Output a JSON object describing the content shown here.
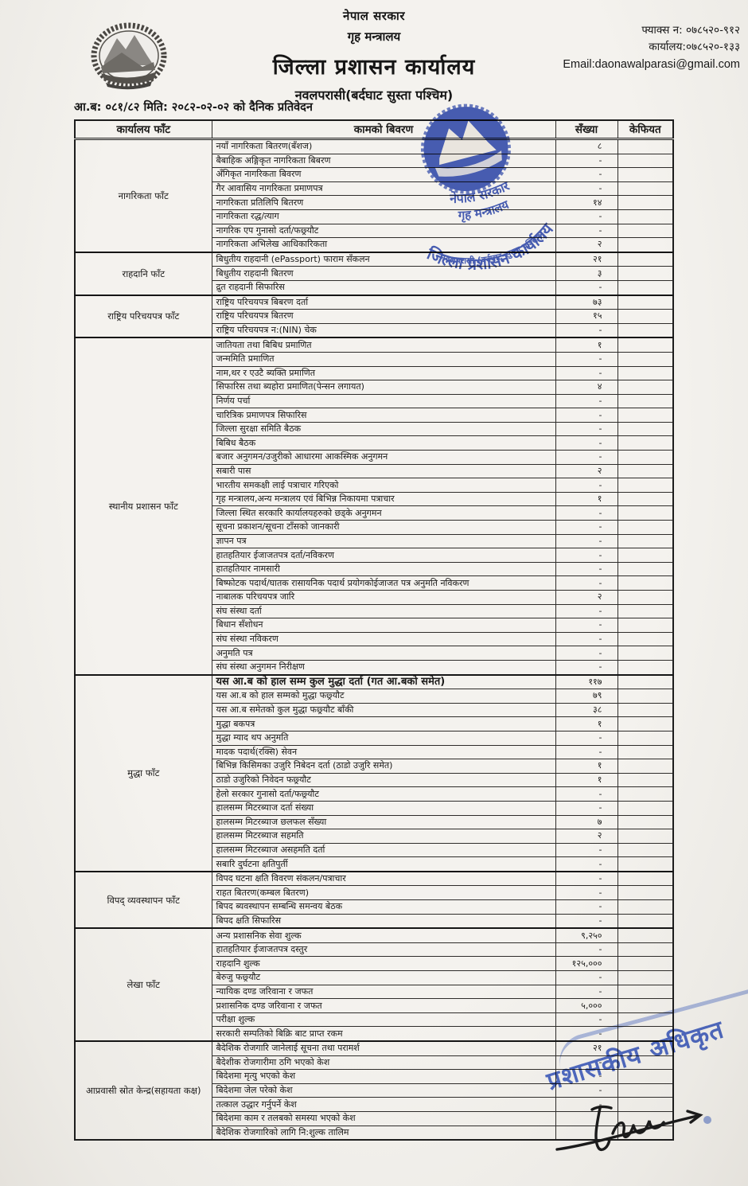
{
  "header": {
    "government": "नेपाल सरकार",
    "ministry": "गृह मन्त्रालय",
    "office": "जिल्ला प्रशासन कार्यालय",
    "district": "नवलपरासी(बर्दघाट सुस्ता पश्चिम)",
    "fax": "फ्याक्स न: ०७८५२०-९१२",
    "phone": "कार्यालय:०७८५२०-१३३",
    "email": "Email:daonawalparasi@gmail.com"
  },
  "report_line": "आ.ब: ०८१/८२ मिति: २०८२-०२-०२ को दैनिक प्रतिवेदन",
  "table": {
    "columns": [
      "कार्यालय फाँट",
      "कामको बिवरण",
      "सँख्या",
      "केफियत"
    ],
    "sections": [
      {
        "name": "नागरिकता फाँट",
        "rows": [
          {
            "label": "नयाँ नागरिकता बितरण(बँशज)",
            "count": "८",
            "remark": ""
          },
          {
            "label": "बैबाहिक अङ्गिकृत नागरिकता बिबरण",
            "count": "-",
            "remark": ""
          },
          {
            "label": "अँगिकृत नागरिकता बिवरण",
            "count": "-",
            "remark": ""
          },
          {
            "label": "गैर आवासिय नागरिकता प्रमाणपत्र",
            "count": "-",
            "remark": ""
          },
          {
            "label": "नागरिकता प्रतिलिपि बितरण",
            "count": "१४",
            "remark": ""
          },
          {
            "label": "नागरिकता रद्ध/त्याग",
            "count": "-",
            "remark": ""
          },
          {
            "label": "नागरिक एप गुनासो दर्ता/फछ्र्यौट",
            "count": "-",
            "remark": ""
          },
          {
            "label": "नागरिकता अभिलेख आधिकारिकता",
            "count": "२",
            "remark": ""
          }
        ]
      },
      {
        "name": "राहदानि फाँट",
        "rows": [
          {
            "label": "बिधुतीय राहदानी (ePassport) फाराम सँकलन",
            "count": "२१",
            "remark": ""
          },
          {
            "label": "बिधुतीय राहदानी बितरण",
            "count": "३",
            "remark": ""
          },
          {
            "label": "द्रुत राहदानी सिफारिस",
            "count": "-",
            "remark": ""
          }
        ]
      },
      {
        "name": "राष्ट्रिय परिचयपत्र फाँट",
        "rows": [
          {
            "label": "राष्ट्रिय परिचयपत्र बिबरण दर्ता",
            "count": "७३",
            "remark": ""
          },
          {
            "label": "राष्ट्रिय परिचयपत्र बितरण",
            "count": "१५",
            "remark": ""
          },
          {
            "label": "राष्ट्रिय परिचयपत्र न:(NIN) चेक",
            "count": "-",
            "remark": ""
          }
        ]
      },
      {
        "name": "स्थानीय प्रशासन फाँट",
        "rows": [
          {
            "label": "जातियता तथा बिबिध प्रमाणित",
            "count": "१",
            "remark": ""
          },
          {
            "label": "जन्ममिति प्रमाणित",
            "count": "-",
            "remark": ""
          },
          {
            "label": "नाम,थर र एउटै ब्यक्ति प्रमाणित",
            "count": "-",
            "remark": ""
          },
          {
            "label": "सिफारिस तथा ब्यहोरा प्रमाणित(पेन्सन लगायत)",
            "count": "४",
            "remark": ""
          },
          {
            "label": "निर्णय पर्चा",
            "count": "-",
            "remark": ""
          },
          {
            "label": "चारित्रिक प्रमाणपत्र सिफारिस",
            "count": "-",
            "remark": ""
          },
          {
            "label": "जिल्ला सुरक्षा समिति बैठक",
            "count": "-",
            "remark": ""
          },
          {
            "label": "बिबिध बैठक",
            "count": "-",
            "remark": ""
          },
          {
            "label": "बजार अनुगमन/उजुरीको आधारमा आकस्मिक अनुगमन",
            "count": "-",
            "remark": ""
          },
          {
            "label": "सबारी पास",
            "count": "२",
            "remark": ""
          },
          {
            "label": "भारतीय समकक्षी लाई पत्राचार गरिएको",
            "count": "-",
            "remark": ""
          },
          {
            "label": "गृह मन्त्रालय,अन्य मन्त्रालय एवं बिभिन्न निकायमा पत्राचार",
            "count": "१",
            "remark": ""
          },
          {
            "label": "जिल्ला स्थित सरकारि कार्यालयहरुको छड्के अनुगमन",
            "count": "-",
            "remark": ""
          },
          {
            "label": "सूचना प्रकाशन/सूचना टाँसको जानकारी",
            "count": "-",
            "remark": ""
          },
          {
            "label": "ज्ञापन पत्र",
            "count": "-",
            "remark": ""
          },
          {
            "label": "हातहतियार ईजाजतपत्र दर्ता/नविकरण",
            "count": "-",
            "remark": ""
          },
          {
            "label": "हातहतियार नामसारी",
            "count": "-",
            "remark": ""
          },
          {
            "label": "बिष्फोटक पदार्थ/घातक रासायनिक पदार्थ प्रयोगकोईजाजत पत्र अनुमति नविकरण",
            "count": "-",
            "remark": ""
          },
          {
            "label": "नाबालक परिचयपत्र जारि",
            "count": "२",
            "remark": ""
          },
          {
            "label": "संघ संस्था दर्ता",
            "count": "-",
            "remark": ""
          },
          {
            "label": "बिधान सँशोधन",
            "count": "-",
            "remark": ""
          },
          {
            "label": "संघ संस्था नविकरण",
            "count": "-",
            "remark": ""
          },
          {
            "label": "अनुमति पत्र",
            "count": "-",
            "remark": ""
          },
          {
            "label": "संघ संस्था अनुगमन निरीक्षण",
            "count": "-",
            "remark": ""
          }
        ]
      },
      {
        "name": "मुद्धा फाँट",
        "rows": [
          {
            "label": "यस आ.ब को हाल सम्म कुल मुद्धा दर्ता (गत आ.बको समेत)",
            "count": "११७",
            "remark": "",
            "bold": true
          },
          {
            "label": "यस आ.ब को हाल सम्मको मुद्धा फछ्र्यौट",
            "count": "७९",
            "remark": ""
          },
          {
            "label": "यस आ.ब समेतको कुल मुद्धा फछ्र्यौट बाँकी",
            "count": "३८",
            "remark": ""
          },
          {
            "label": "मुद्धा बकपत्र",
            "count": "१",
            "remark": ""
          },
          {
            "label": "मुद्धा म्याद थप अनुमति",
            "count": "-",
            "remark": ""
          },
          {
            "label": "मादक पदार्थ(रक्सि) सेवन",
            "count": "-",
            "remark": ""
          },
          {
            "label": "बिभिन्न किसिमका उजुरि निबेदन दर्ता (ठाडो उजुरि समेत)",
            "count": "१",
            "remark": ""
          },
          {
            "label": "ठाडो उजुरिको निवेदन फछ्र्यौट",
            "count": "१",
            "remark": ""
          },
          {
            "label": "हेलो सरकार गुनासो दर्ता/फछ्र्यौट",
            "count": "-",
            "remark": ""
          },
          {
            "label": "हालसम्म मिटरब्याज दर्ता संख्या",
            "count": "-",
            "remark": ""
          },
          {
            "label": "हालसम्म मिटरब्याज छलफल सँख्या",
            "count": "७",
            "remark": ""
          },
          {
            "label": "हालसम्म मिटरब्याज सहमति",
            "count": "२",
            "remark": ""
          },
          {
            "label": "हालसम्म मिटरब्याज असहमति दर्ता",
            "count": "-",
            "remark": ""
          },
          {
            "label": "सबारि दुर्घटना क्षतिपुर्ती",
            "count": "-",
            "remark": ""
          }
        ]
      },
      {
        "name": "विपद् व्यवस्थापन फाँट",
        "rows": [
          {
            "label": "विपद घटना क्षति विवरण संकलन/पत्राचार",
            "count": "-",
            "remark": ""
          },
          {
            "label": "राहत बितरण(कम्बल बितरण)",
            "count": "-",
            "remark": ""
          },
          {
            "label": "बिपद ब्यवस्थापन सम्बन्धि समन्वय बेठक",
            "count": "-",
            "remark": ""
          },
          {
            "label": "बिपद क्षति सिफारिस",
            "count": "-",
            "remark": ""
          }
        ]
      },
      {
        "name": "लेखा फाँट",
        "rows": [
          {
            "label": "अन्य प्रशासनिक सेवा शुल्क",
            "count": "९,२५०",
            "remark": ""
          },
          {
            "label": "हातहतियार ईजाजतपत्र दस्तुर",
            "count": "-",
            "remark": ""
          },
          {
            "label": "राहदानि शुल्क",
            "count": "१२५,०००",
            "remark": ""
          },
          {
            "label": "बेरुजु फछ्र्यौट",
            "count": "-",
            "remark": ""
          },
          {
            "label": "न्यायिक दण्ड जरिवाना र जफत",
            "count": "-",
            "remark": ""
          },
          {
            "label": "प्रशासनिक दण्ड जरिवाना र जफत",
            "count": "५,०००",
            "remark": ""
          },
          {
            "label": "परीक्षा शुल्क",
            "count": "-",
            "remark": ""
          },
          {
            "label": "सरकारी सम्पतिको बिक्रि बाट प्राप्त रकम",
            "count": "-",
            "remark": ""
          }
        ]
      },
      {
        "name": "आप्रवासी स्रोत केन्द्र(सहायता कक्ष)",
        "rows": [
          {
            "label": "बैदेशिक रोजगारि जानेलाई सूचना तथा परामर्श",
            "count": "२१",
            "remark": ""
          },
          {
            "label": "बैदेशीक रोजगारीमा ठगि भएको केश",
            "count": "-",
            "remark": ""
          },
          {
            "label": "बिदेशमा मृत्यु भएको केश",
            "count": "-",
            "remark": ""
          },
          {
            "label": "बिदेशमा जेल परेको केश",
            "count": "-",
            "remark": ""
          },
          {
            "label": "तत्काल उद्धार गर्नुपर्ने केश",
            "count": "-",
            "remark": ""
          },
          {
            "label": "बिदेशमा काम र तलबको समस्या भएको केश",
            "count": "",
            "remark": ""
          },
          {
            "label": "बैदेशिक रोजगारिको लागि नि:शुल्क तालिम",
            "count": "",
            "remark": ""
          }
        ]
      }
    ]
  },
  "stamps": {
    "round_stamp": {
      "line1": "नेपाल सरकार",
      "line2": "गृह मन्त्रालय",
      "line3": "जिल्ला प्रशासन कार्यालय",
      "line4": "नवलपरासी (बर्दघाट-सुस्ता पश्चिम)",
      "color": "#2c47b2"
    },
    "officer_stamp": {
      "text": "प्रशासकीय अधिकृत",
      "color": "#3354c4"
    }
  }
}
